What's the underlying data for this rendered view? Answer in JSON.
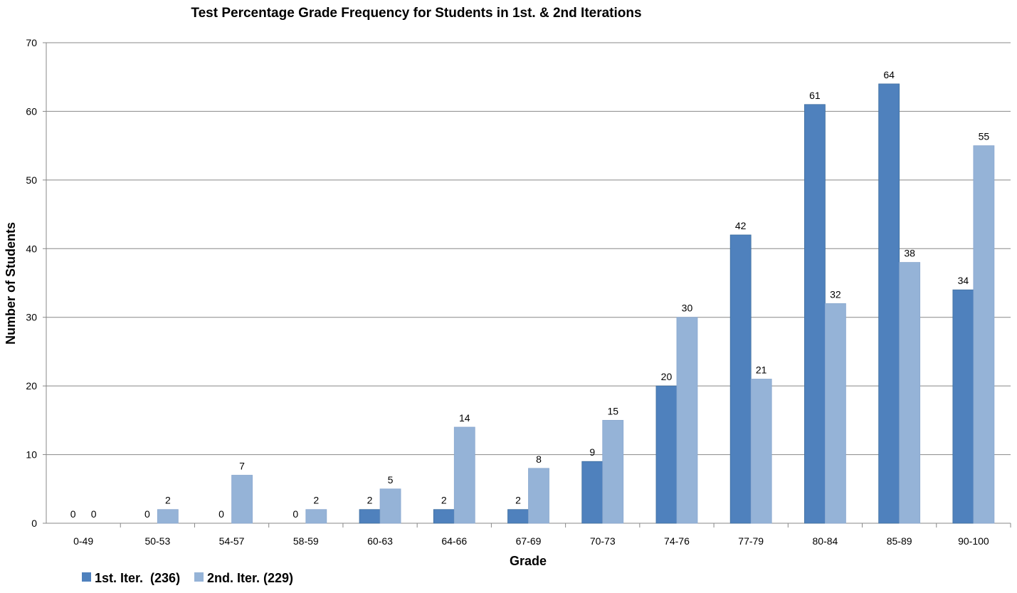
{
  "chart_data": {
    "type": "bar",
    "title": "Test Percentage Grade Frequency for Students in 1st. & 2nd Iterations",
    "xlabel": "Grade",
    "ylabel": "Number of Students",
    "ylim": [
      0,
      70
    ],
    "yticks": [
      0,
      10,
      20,
      30,
      40,
      50,
      60,
      70
    ],
    "grid": true,
    "legend_position": "bottom-left",
    "categories": [
      "0-49",
      "50-53",
      "54-57",
      "58-59",
      "60-63",
      "64-66",
      "67-69",
      "70-73",
      "74-76",
      "77-79",
      "80-84",
      "85-89",
      "90-100"
    ],
    "series": [
      {
        "name": "1st. Iter.  (236)",
        "color": "#4f81bd",
        "values": [
          0,
          0,
          0,
          0,
          2,
          2,
          2,
          9,
          20,
          42,
          61,
          64,
          34
        ]
      },
      {
        "name": "2nd. Iter. (229)",
        "color": "#95b3d7",
        "values": [
          0,
          2,
          7,
          2,
          5,
          14,
          8,
          15,
          30,
          21,
          32,
          38,
          55
        ]
      }
    ]
  }
}
